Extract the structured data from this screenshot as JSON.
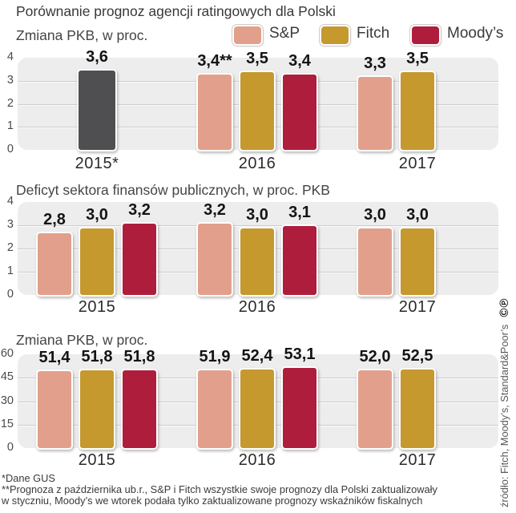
{
  "title": "Porównanie prognoz agencji ratingowych dla Polski",
  "legend": [
    {
      "label": "S&P",
      "key": "sp"
    },
    {
      "label": "Fitch",
      "key": "fitch"
    },
    {
      "label": "Moody’s",
      "key": "moodys"
    }
  ],
  "colors": {
    "sp": "#e2a08c",
    "fitch": "#c5992e",
    "moodys": "#ae1e3c",
    "gus": "#4f4f52",
    "plot_bg": "#ededed",
    "gridline": "#cdcdcd"
  },
  "chart_data": [
    {
      "type": "bar",
      "title": "Zmiana PKB, w proc.",
      "ylim": [
        0,
        4
      ],
      "yticks": [
        0,
        1,
        2,
        3,
        4
      ],
      "categories": [
        "2015*",
        "2016",
        "2017"
      ],
      "groups": [
        {
          "category": "2015*",
          "bars": [
            {
              "agency": "GUS",
              "value": 3.6,
              "label": "3,6",
              "slot": 1,
              "w": 50
            }
          ]
        },
        {
          "category": "2016",
          "bars": [
            {
              "agency": "S&P",
              "value": 3.4,
              "label": "3,4**"
            },
            {
              "agency": "Fitch",
              "value": 3.5,
              "label": "3,5"
            },
            {
              "agency": "Moody’s",
              "value": 3.4,
              "label": "3,4"
            }
          ]
        },
        {
          "category": "2017",
          "bars": [
            {
              "agency": "S&P",
              "value": 3.3,
              "label": "3,3"
            },
            {
              "agency": "Fitch",
              "value": 3.5,
              "label": "3,5"
            }
          ]
        }
      ]
    },
    {
      "type": "bar",
      "title": "Deficyt sektora finansów publicznych, w proc. PKB",
      "ylim": [
        0,
        4
      ],
      "yticks": [
        0,
        1,
        2,
        3,
        4
      ],
      "categories": [
        "2015",
        "2016",
        "2017"
      ],
      "groups": [
        {
          "category": "2015",
          "bars": [
            {
              "agency": "S&P",
              "value": 2.8,
              "label": "2,8"
            },
            {
              "agency": "Fitch",
              "value": 3.0,
              "label": "3,0"
            },
            {
              "agency": "Moody’s",
              "value": 3.2,
              "label": "3,2"
            }
          ]
        },
        {
          "category": "2016",
          "bars": [
            {
              "agency": "S&P",
              "value": 3.2,
              "label": "3,2"
            },
            {
              "agency": "Fitch",
              "value": 3.0,
              "label": "3,0"
            },
            {
              "agency": "Moody’s",
              "value": 3.1,
              "label": "3,1"
            }
          ]
        },
        {
          "category": "2017",
          "bars": [
            {
              "agency": "S&P",
              "value": 3.0,
              "label": "3,0"
            },
            {
              "agency": "Fitch",
              "value": 3.0,
              "label": "3,0"
            }
          ]
        }
      ]
    },
    {
      "type": "bar",
      "title": "Zmiana PKB, w proc.",
      "ylim": [
        0,
        60
      ],
      "yticks": [
        0,
        15,
        30,
        45,
        60
      ],
      "categories": [
        "2015",
        "2016",
        "2017"
      ],
      "groups": [
        {
          "category": "2015",
          "bars": [
            {
              "agency": "S&P",
              "value": 51.4,
              "label": "51,4"
            },
            {
              "agency": "Fitch",
              "value": 51.8,
              "label": "51,8"
            },
            {
              "agency": "Moody’s",
              "value": 51.8,
              "label": "51,8"
            }
          ]
        },
        {
          "category": "2016",
          "bars": [
            {
              "agency": "S&P",
              "value": 51.9,
              "label": "51,9"
            },
            {
              "agency": "Fitch",
              "value": 52.4,
              "label": "52,4"
            },
            {
              "agency": "Moody’s",
              "value": 53.1,
              "label": "53,1"
            }
          ]
        },
        {
          "category": "2017",
          "bars": [
            {
              "agency": "S&P",
              "value": 52.0,
              "label": "52,0"
            },
            {
              "agency": "Fitch",
              "value": 52.5,
              "label": "52,5"
            }
          ]
        }
      ]
    }
  ],
  "footnotes": [
    "*Dane GUS",
    "**Prognoza z października ub.r., S&P i Fitch wszystkie swoje prognozy dla Polski zaktualizowały",
    "w styczniu, Moody’s we wtorek podała tylko zaktualizowane prognozy wskaźników fiskalnych"
  ],
  "source": "źródło: Fitch, Moody’s, Standard&Poor’s",
  "copyright": "©℗"
}
